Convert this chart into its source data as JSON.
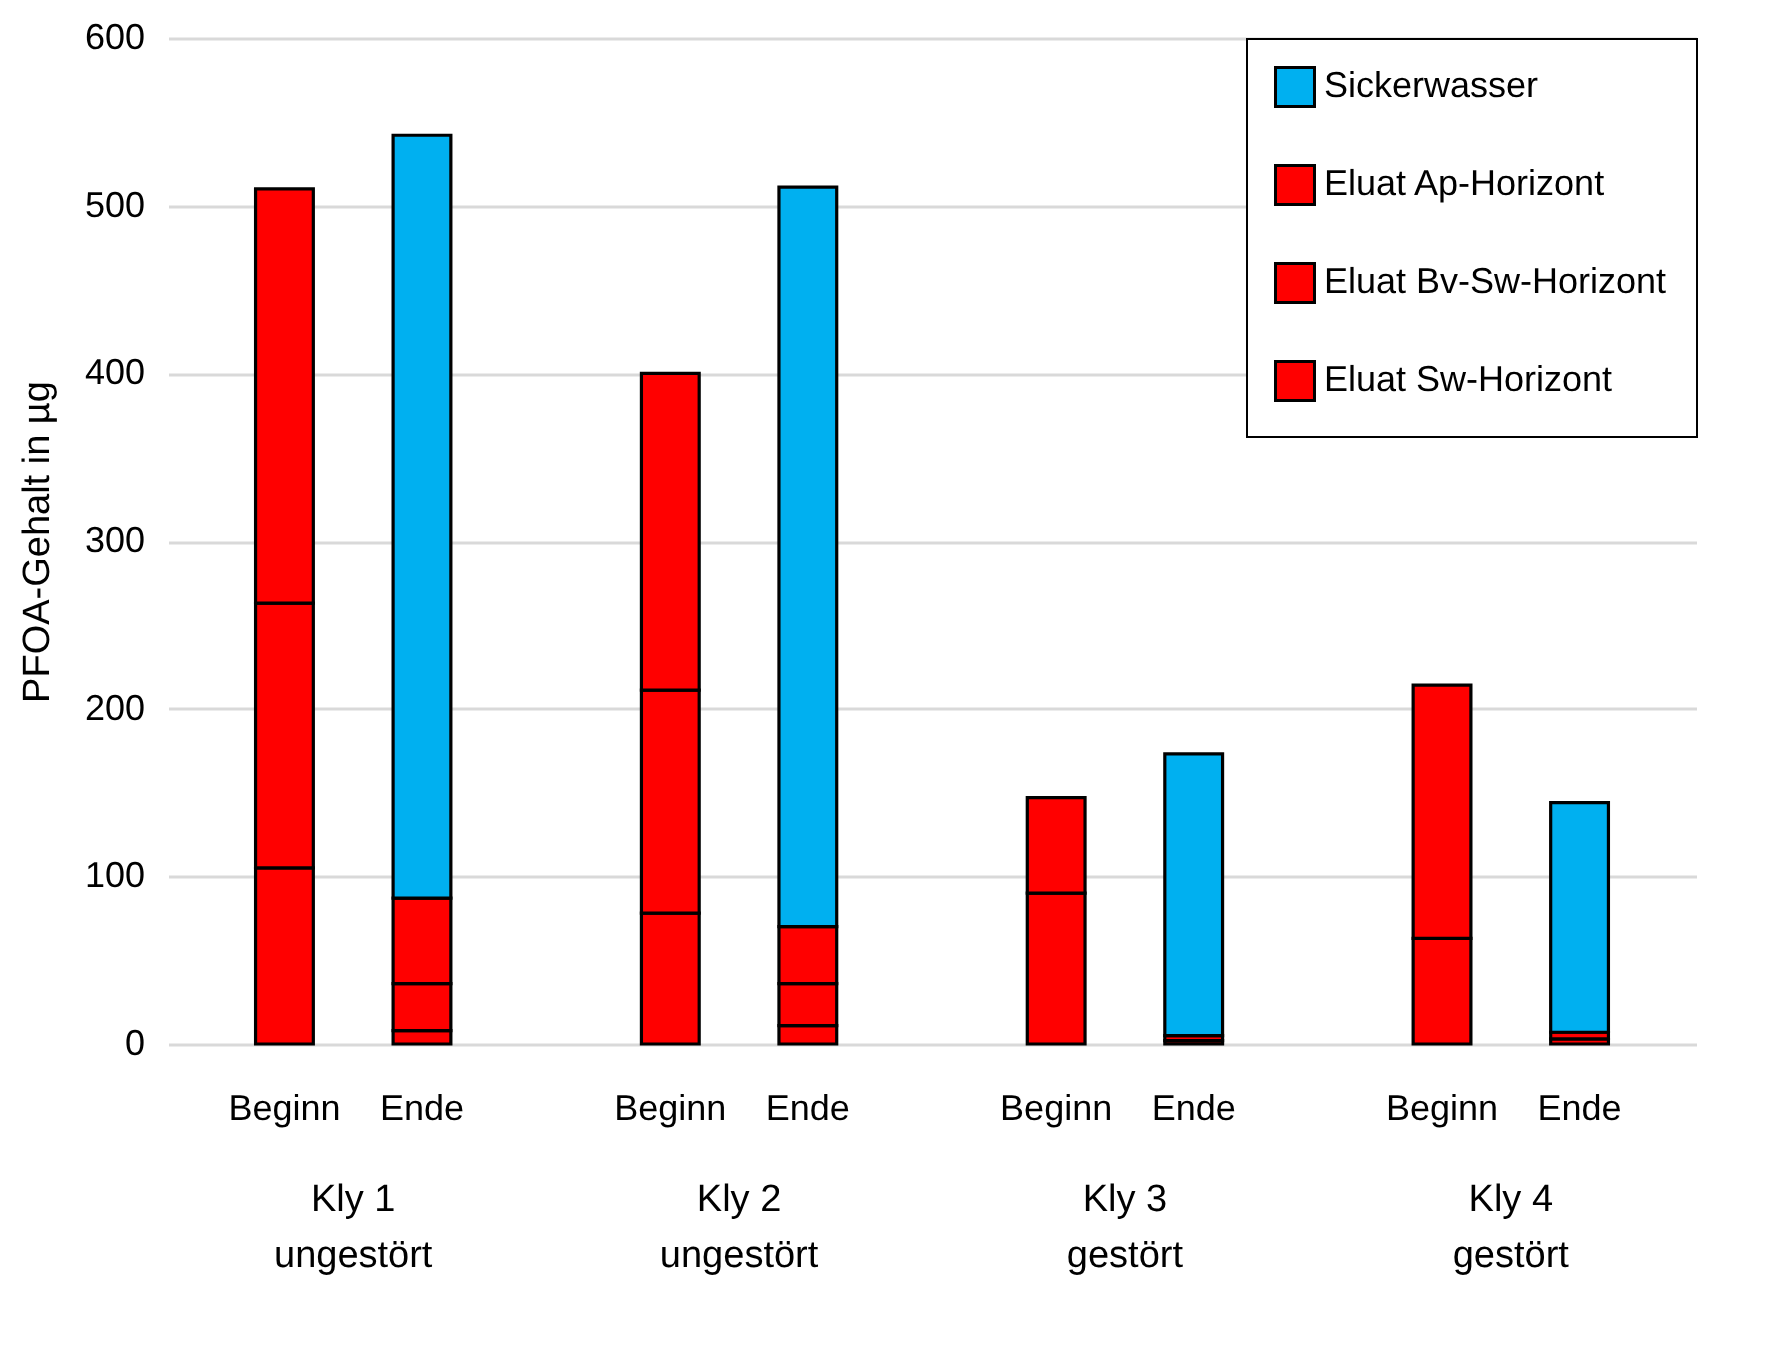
{
  "chart_data": {
    "type": "bar",
    "stacked": true,
    "ylabel": "PFOA-Gehalt in µg",
    "categories": [
      "Beginn",
      "Ende",
      "Beginn",
      "Ende",
      "Beginn",
      "Ende",
      "Beginn",
      "Ende"
    ],
    "series": [
      {
        "name": "Eluat Sw-Horizont",
        "color": "#ff0000",
        "values": [
          105,
          8,
          78,
          11,
          90,
          2,
          63,
          3
        ]
      },
      {
        "name": "Eluat Bv-Sw-Horizont",
        "color": "#ff0000",
        "values": [
          158,
          28,
          133,
          25,
          57,
          3,
          151,
          4
        ]
      },
      {
        "name": "Eluat Ap-Horizont",
        "color": "#ff0000",
        "values": [
          247,
          51,
          189,
          34,
          null,
          null,
          null,
          null
        ]
      },
      {
        "name": "Sickerwasser",
        "color": "#00b0f0",
        "values": [
          null,
          455,
          null,
          441,
          null,
          168,
          null,
          137
        ]
      }
    ],
    "ylim": [
      0,
      600
    ],
    "yticks": [
      0,
      100,
      200,
      300,
      400,
      500,
      600
    ],
    "grid": "y",
    "legend": "top right",
    "annotations": [
      "Kly 1\nungestört",
      "Kly 2\nungestört",
      "Kly 3\ngestört",
      "Kly 4\ngestört"
    ]
  }
}
